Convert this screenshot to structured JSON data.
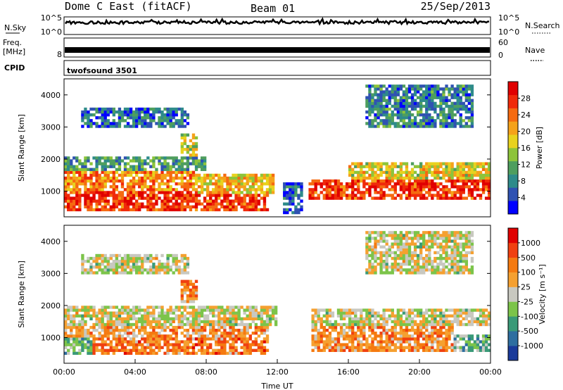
{
  "header": {
    "station": "Dome C East (fitACF)",
    "beam": "Beam 01",
    "date": "25/Sep/2013"
  },
  "noise_panel": {
    "left_label": "N.Sky",
    "right_label": "N.Search",
    "left_ticks": [
      "10^5",
      "10^0"
    ],
    "right_ticks": [
      "10^5",
      "10^0"
    ]
  },
  "freq_panel": {
    "left_label_top": "Freq.",
    "left_label_unit": "[MHz]",
    "left_ticks": [
      "8"
    ],
    "right_label": "Nave",
    "right_ticks": [
      "60",
      "0"
    ]
  },
  "cpid_panel": {
    "label": "CPID",
    "program": "twofsound 3501"
  },
  "chart_data": [
    {
      "type": "heatmap",
      "name": "power",
      "ylabel": "Slant Range [km]",
      "yticks": [
        "4000",
        "3000",
        "2000",
        "1000"
      ],
      "ylim": [
        200,
        4500
      ],
      "xlim_hours": [
        0,
        24
      ],
      "colorbar_label": "Power [dB]",
      "colorbar_ticks": [
        "28",
        "24",
        "20",
        "16",
        "12",
        "8",
        "4"
      ],
      "colorscale": [
        "#0000ff",
        "#2f52b2",
        "#2e8b8a",
        "#4e9e5e",
        "#8dc43a",
        "#e8d21e",
        "#f5a21a",
        "#f56a10",
        "#f02a0a",
        "#e00000"
      ],
      "regions": [
        {
          "t0": 0.0,
          "t1": 11.6,
          "r0": 400,
          "r1": 1050,
          "level": 0.85
        },
        {
          "t0": 0.0,
          "t1": 7.5,
          "r0": 1050,
          "r1": 1650,
          "level": 0.7
        },
        {
          "t0": 7.5,
          "t1": 11.8,
          "r0": 900,
          "r1": 1500,
          "level": 0.6
        },
        {
          "t0": 13.8,
          "t1": 24.0,
          "r0": 700,
          "r1": 1400,
          "level": 0.85
        },
        {
          "t0": 16.0,
          "t1": 24.0,
          "r0": 1400,
          "r1": 1900,
          "level": 0.55
        },
        {
          "t0": 0.0,
          "t1": 8.0,
          "r0": 1650,
          "r1": 2100,
          "level": 0.3
        },
        {
          "t0": 6.5,
          "t1": 7.5,
          "r0": 2100,
          "r1": 2800,
          "level": 0.5
        },
        {
          "t0": 1.0,
          "t1": 7.0,
          "r0": 3000,
          "r1": 3600,
          "level": 0.2
        },
        {
          "t0": 17.0,
          "t1": 23.0,
          "r0": 3000,
          "r1": 4300,
          "level": 0.25
        },
        {
          "t0": 12.4,
          "t1": 13.4,
          "r0": 300,
          "r1": 1300,
          "level": 0.2
        }
      ]
    },
    {
      "type": "heatmap",
      "name": "velocity",
      "ylabel": "Slant Range [km]",
      "yticks": [
        "4000",
        "3000",
        "2000",
        "1000"
      ],
      "ylim": [
        200,
        4500
      ],
      "xlim_hours": [
        0,
        24
      ],
      "xticks": [
        "00:00",
        "04:00",
        "08:00",
        "12:00",
        "16:00",
        "20:00",
        "00:00"
      ],
      "xlabel": "Time UT",
      "colorbar_label": "Velocity [m s⁻¹]",
      "colorbar_ticks": [
        "1000",
        "500",
        "100",
        "25",
        "-25",
        "-100",
        "-500",
        "-1000"
      ],
      "colorscale": [
        "#1a3a9a",
        "#2e6ea0",
        "#3a9a78",
        "#7cc44a",
        "#c8c8c0",
        "#f5a030",
        "#f57a10",
        "#f04010",
        "#e00000"
      ],
      "regions": [
        {
          "t0": 0.0,
          "t1": 1.6,
          "r0": 500,
          "r1": 1000,
          "level": 0.35
        },
        {
          "t0": 1.6,
          "t1": 11.6,
          "r0": 500,
          "r1": 1000,
          "level": 0.72
        },
        {
          "t0": 0.0,
          "t1": 11.6,
          "r0": 1000,
          "r1": 1400,
          "level": 0.65
        },
        {
          "t0": 0.0,
          "t1": 12.0,
          "r0": 1400,
          "r1": 2000,
          "level": 0.5
        },
        {
          "t0": 14.0,
          "t1": 22.0,
          "r0": 600,
          "r1": 1400,
          "level": 0.68
        },
        {
          "t0": 22.0,
          "t1": 24.0,
          "r0": 600,
          "r1": 1100,
          "level": 0.35
        },
        {
          "t0": 14.0,
          "t1": 24.0,
          "r0": 1400,
          "r1": 1900,
          "level": 0.5
        },
        {
          "t0": 6.5,
          "t1": 7.5,
          "r0": 2100,
          "r1": 2800,
          "level": 0.7
        },
        {
          "t0": 17.0,
          "t1": 23.0,
          "r0": 3000,
          "r1": 4300,
          "level": 0.5
        },
        {
          "t0": 1.0,
          "t1": 7.0,
          "r0": 3000,
          "r1": 3600,
          "level": 0.5
        }
      ]
    }
  ]
}
